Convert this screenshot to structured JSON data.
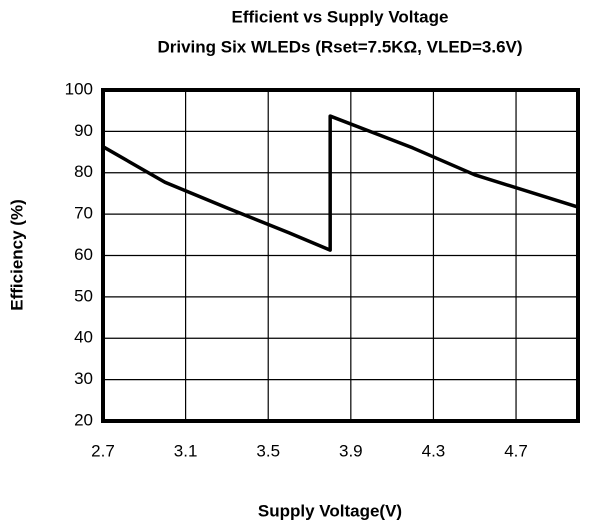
{
  "chart_data": {
    "type": "line",
    "title": "Efficient vs Supply Voltage",
    "subtitle": "Driving Six WLEDs (Rset=7.5KΩ, VLED=3.6V)",
    "xlabel": "Supply Voltage(V)",
    "ylabel": "Efficiency (%)",
    "x": [
      2.7,
      3.0,
      3.3,
      3.6,
      3.8,
      3.8,
      4.2,
      4.5,
      5.0
    ],
    "values": [
      86.3,
      77.7,
      71.5,
      65.5,
      61.3,
      93.7,
      86,
      79.5,
      71.7
    ],
    "color": "#000000",
    "xlim": [
      2.7,
      5.0
    ],
    "xticks": [
      2.7,
      3.1,
      3.5,
      3.9,
      4.3,
      4.7
    ],
    "ylim": [
      20,
      100
    ],
    "yticks": [
      20,
      30,
      40,
      50,
      60,
      70,
      80,
      90,
      100
    ],
    "grid": true
  }
}
